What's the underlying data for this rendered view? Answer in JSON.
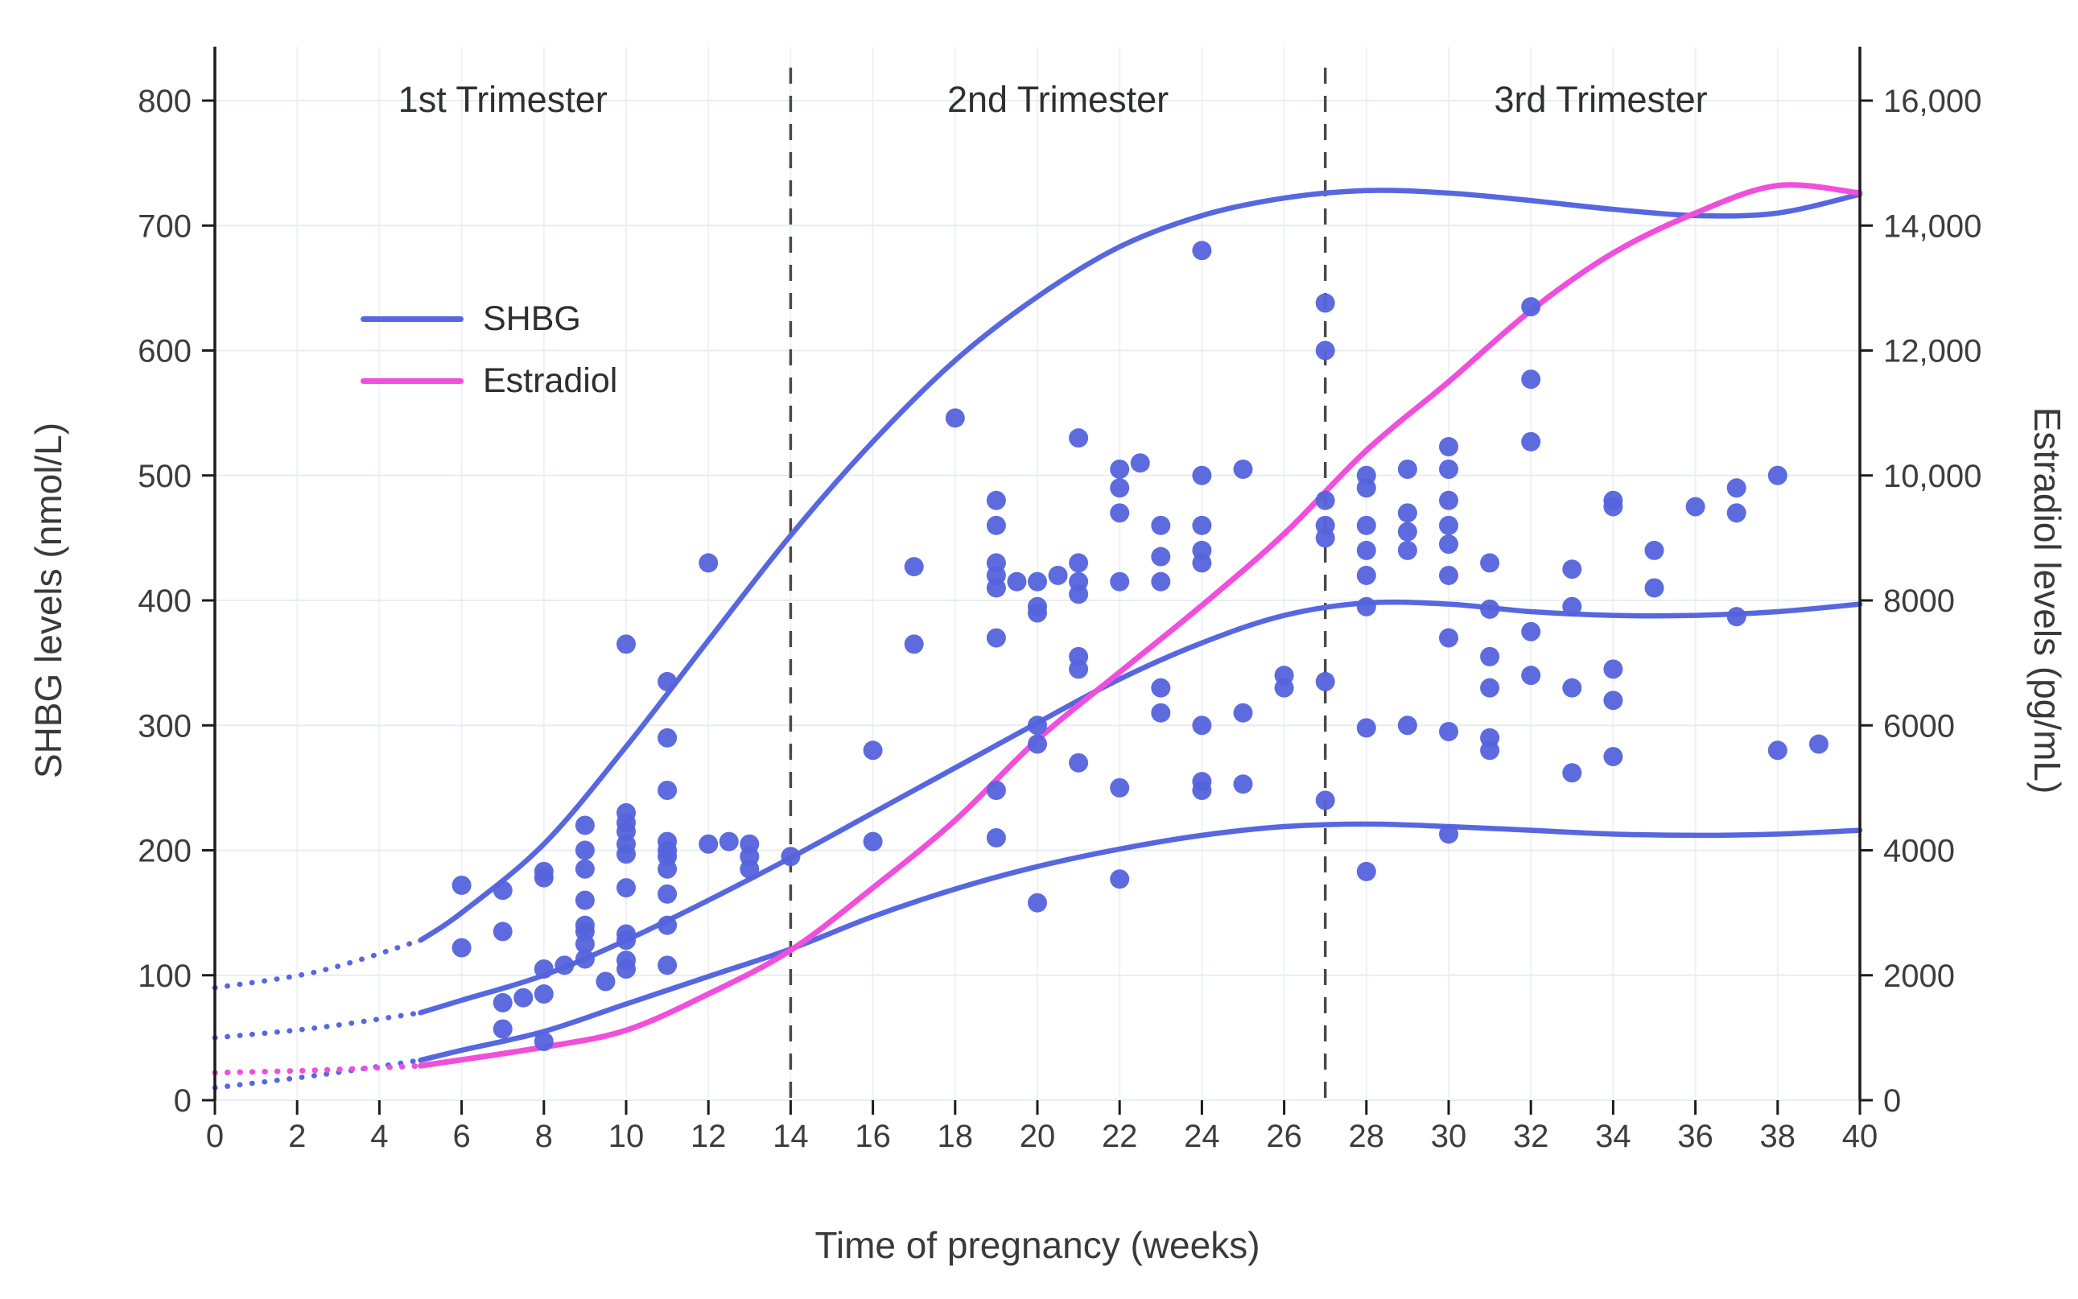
{
  "chart_data": {
    "type": "line+scatter",
    "title": "",
    "x_axis": {
      "label": "Time of pregnancy (weeks)",
      "range": [
        0,
        40
      ],
      "tick_labels": [
        "0",
        "2",
        "4",
        "6",
        "8",
        "10",
        "12",
        "14",
        "16",
        "18",
        "20",
        "22",
        "24",
        "26",
        "28",
        "30",
        "32",
        "34",
        "36",
        "38",
        "40"
      ]
    },
    "y_left": {
      "label": "SHBG levels (nmol/L)",
      "range": [
        0,
        800
      ],
      "tick_labels": [
        "0",
        "100",
        "200",
        "300",
        "400",
        "500",
        "600",
        "700",
        "800"
      ]
    },
    "y_right": {
      "label": "Estradiol levels (pg/mL)",
      "range": [
        0,
        16000
      ],
      "tick_labels": [
        "0",
        "2000",
        "4000",
        "6000",
        "8000",
        "10,000",
        "12,000",
        "14,000",
        "16,000"
      ]
    },
    "trimesters": {
      "divider_weeks": [
        14,
        27
      ],
      "labels": [
        {
          "text": "1st Trimester",
          "week": 7
        },
        {
          "text": "2nd Trimester",
          "week": 20.5
        },
        {
          "text": "3rd Trimester",
          "week": 33.7
        }
      ]
    },
    "legend": {
      "items": [
        {
          "label": "SHBG",
          "color": "#5767E0"
        },
        {
          "label": "Estradiol",
          "color": "#F04FDC"
        }
      ]
    },
    "colors": {
      "shbg": "#5767E0",
      "estradiol": "#F04FDC",
      "grid_h": "#e8ecf6",
      "grid_v": "#eef1f9",
      "axis": "#1c1c1c",
      "divider": "#4a4a4a",
      "text": "#3d3d3d"
    },
    "series": [
      {
        "id": "shbg-upper-curve",
        "axis": "left",
        "color": "#5767E0",
        "width": 6.5,
        "dotted": [
          [
            0,
            90
          ],
          [
            2.5,
            103
          ],
          [
            5,
            128
          ]
        ],
        "solid": [
          [
            5,
            128
          ],
          [
            6,
            150
          ],
          [
            8,
            205
          ],
          [
            10,
            283
          ],
          [
            12,
            368
          ],
          [
            14,
            452
          ],
          [
            16,
            527
          ],
          [
            18,
            592
          ],
          [
            20,
            643
          ],
          [
            22,
            683
          ],
          [
            24,
            708
          ],
          [
            26,
            722
          ],
          [
            28,
            728
          ],
          [
            30,
            726
          ],
          [
            32,
            720
          ],
          [
            34,
            713
          ],
          [
            36,
            708
          ],
          [
            38,
            710
          ],
          [
            40,
            725
          ]
        ]
      },
      {
        "id": "shbg-middle-curve",
        "axis": "left",
        "color": "#5767E0",
        "width": 6.5,
        "dotted": [
          [
            0,
            50
          ],
          [
            2.5,
            58
          ],
          [
            5,
            70
          ]
        ],
        "solid": [
          [
            5,
            70
          ],
          [
            6,
            80
          ],
          [
            8,
            100
          ],
          [
            10,
            128
          ],
          [
            12,
            160
          ],
          [
            14,
            194
          ],
          [
            16,
            230
          ],
          [
            18,
            266
          ],
          [
            20,
            302
          ],
          [
            22,
            337
          ],
          [
            24,
            366
          ],
          [
            26,
            388
          ],
          [
            28,
            398
          ],
          [
            30,
            397
          ],
          [
            32,
            391
          ],
          [
            34,
            388
          ],
          [
            36,
            388
          ],
          [
            38,
            391
          ],
          [
            40,
            397
          ]
        ]
      },
      {
        "id": "shbg-lower-curve",
        "axis": "left",
        "color": "#5767E0",
        "width": 6.5,
        "dotted": [
          [
            0,
            10
          ],
          [
            2.5,
            20
          ],
          [
            5,
            32
          ]
        ],
        "solid": [
          [
            5,
            32
          ],
          [
            6,
            40
          ],
          [
            8,
            55
          ],
          [
            10,
            77
          ],
          [
            12,
            99
          ],
          [
            14,
            121
          ],
          [
            16,
            147
          ],
          [
            18,
            169
          ],
          [
            20,
            187
          ],
          [
            22,
            201
          ],
          [
            24,
            212
          ],
          [
            26,
            219
          ],
          [
            28,
            221
          ],
          [
            30,
            219
          ],
          [
            32,
            216
          ],
          [
            34,
            213
          ],
          [
            36,
            212
          ],
          [
            38,
            213
          ],
          [
            40,
            216
          ]
        ]
      },
      {
        "id": "estradiol-curve",
        "axis": "right",
        "color": "#F04FDC",
        "width": 7,
        "dotted": [
          [
            0,
            440
          ],
          [
            2.5,
            480
          ],
          [
            5,
            550
          ]
        ],
        "solid": [
          [
            5,
            550
          ],
          [
            8,
            850
          ],
          [
            10,
            1120
          ],
          [
            12,
            1700
          ],
          [
            14,
            2400
          ],
          [
            16,
            3400
          ],
          [
            18,
            4480
          ],
          [
            20,
            5770
          ],
          [
            22,
            6850
          ],
          [
            24,
            7920
          ],
          [
            26,
            9065
          ],
          [
            28,
            10400
          ],
          [
            30,
            11500
          ],
          [
            32,
            12640
          ],
          [
            34,
            13560
          ],
          [
            36,
            14200
          ],
          [
            38,
            14640
          ],
          [
            40,
            14520
          ]
        ]
      }
    ],
    "scatter": {
      "id": "shbg-observations",
      "color": "#5463DC",
      "radius": 12,
      "points": [
        [
          6,
          122
        ],
        [
          6,
          172
        ],
        [
          7,
          57
        ],
        [
          7,
          78
        ],
        [
          7,
          135
        ],
        [
          7,
          168
        ],
        [
          7.5,
          82
        ],
        [
          8,
          47
        ],
        [
          8,
          85
        ],
        [
          8,
          105
        ],
        [
          8,
          178
        ],
        [
          8,
          183
        ],
        [
          8.5,
          108
        ],
        [
          9,
          113
        ],
        [
          9,
          125
        ],
        [
          9,
          135
        ],
        [
          9,
          140
        ],
        [
          9,
          160
        ],
        [
          9,
          185
        ],
        [
          9,
          200
        ],
        [
          9,
          220
        ],
        [
          9.5,
          95
        ],
        [
          10,
          105
        ],
        [
          10,
          112
        ],
        [
          10,
          128
        ],
        [
          10,
          133
        ],
        [
          10,
          170
        ],
        [
          10,
          197
        ],
        [
          10,
          205
        ],
        [
          10,
          215
        ],
        [
          10,
          222
        ],
        [
          10,
          230
        ],
        [
          10,
          365
        ],
        [
          11,
          108
        ],
        [
          11,
          140
        ],
        [
          11,
          165
        ],
        [
          11,
          185
        ],
        [
          11,
          195
        ],
        [
          11,
          200
        ],
        [
          11,
          207
        ],
        [
          11,
          248
        ],
        [
          11,
          290
        ],
        [
          11,
          335
        ],
        [
          12,
          205
        ],
        [
          12,
          430
        ],
        [
          12.5,
          207
        ],
        [
          13,
          185
        ],
        [
          13,
          195
        ],
        [
          13,
          205
        ],
        [
          14,
          195
        ],
        [
          16,
          207
        ],
        [
          16,
          280
        ],
        [
          17,
          365
        ],
        [
          17,
          427
        ],
        [
          18,
          546
        ],
        [
          19,
          210
        ],
        [
          19,
          248
        ],
        [
          19,
          370
        ],
        [
          19,
          410
        ],
        [
          19,
          420
        ],
        [
          19,
          430
        ],
        [
          19,
          460
        ],
        [
          19,
          480
        ],
        [
          19.5,
          415
        ],
        [
          20,
          158
        ],
        [
          20,
          285
        ],
        [
          20,
          300
        ],
        [
          20,
          390
        ],
        [
          20,
          395
        ],
        [
          20,
          415
        ],
        [
          20.5,
          420
        ],
        [
          21,
          270
        ],
        [
          21,
          345
        ],
        [
          21,
          355
        ],
        [
          21,
          405
        ],
        [
          21,
          415
        ],
        [
          21,
          430
        ],
        [
          21,
          530
        ],
        [
          22,
          177
        ],
        [
          22,
          250
        ],
        [
          22,
          415
        ],
        [
          22,
          470
        ],
        [
          22,
          490
        ],
        [
          22,
          505
        ],
        [
          22.5,
          510
        ],
        [
          23,
          310
        ],
        [
          23,
          330
        ],
        [
          23,
          415
        ],
        [
          23,
          435
        ],
        [
          23,
          460
        ],
        [
          24,
          248
        ],
        [
          24,
          255
        ],
        [
          24,
          300
        ],
        [
          24,
          430
        ],
        [
          24,
          440
        ],
        [
          24,
          460
        ],
        [
          24,
          500
        ],
        [
          24,
          680
        ],
        [
          25,
          253
        ],
        [
          25,
          310
        ],
        [
          25,
          505
        ],
        [
          26,
          330
        ],
        [
          26,
          340
        ],
        [
          27,
          240
        ],
        [
          27,
          335
        ],
        [
          27,
          450
        ],
        [
          27,
          460
        ],
        [
          27,
          480
        ],
        [
          27,
          600
        ],
        [
          27,
          638
        ],
        [
          28,
          183
        ],
        [
          28,
          298
        ],
        [
          28,
          395
        ],
        [
          28,
          420
        ],
        [
          28,
          440
        ],
        [
          28,
          460
        ],
        [
          28,
          490
        ],
        [
          28,
          500
        ],
        [
          29,
          300
        ],
        [
          29,
          440
        ],
        [
          29,
          455
        ],
        [
          29,
          470
        ],
        [
          29,
          505
        ],
        [
          30,
          213
        ],
        [
          30,
          295
        ],
        [
          30,
          370
        ],
        [
          30,
          420
        ],
        [
          30,
          445
        ],
        [
          30,
          460
        ],
        [
          30,
          480
        ],
        [
          30,
          505
        ],
        [
          30,
          523
        ],
        [
          31,
          280
        ],
        [
          31,
          290
        ],
        [
          31,
          330
        ],
        [
          31,
          355
        ],
        [
          31,
          393
        ],
        [
          31,
          430
        ],
        [
          32,
          340
        ],
        [
          32,
          375
        ],
        [
          32,
          527
        ],
        [
          32,
          577
        ],
        [
          32,
          635
        ],
        [
          33,
          262
        ],
        [
          33,
          330
        ],
        [
          33,
          395
        ],
        [
          33,
          425
        ],
        [
          34,
          275
        ],
        [
          34,
          320
        ],
        [
          34,
          345
        ],
        [
          34,
          475
        ],
        [
          34,
          480
        ],
        [
          35,
          410
        ],
        [
          35,
          440
        ],
        [
          36,
          475
        ],
        [
          37,
          387
        ],
        [
          37,
          470
        ],
        [
          37,
          490
        ],
        [
          38,
          280
        ],
        [
          38,
          500
        ],
        [
          39,
          285
        ]
      ]
    }
  }
}
